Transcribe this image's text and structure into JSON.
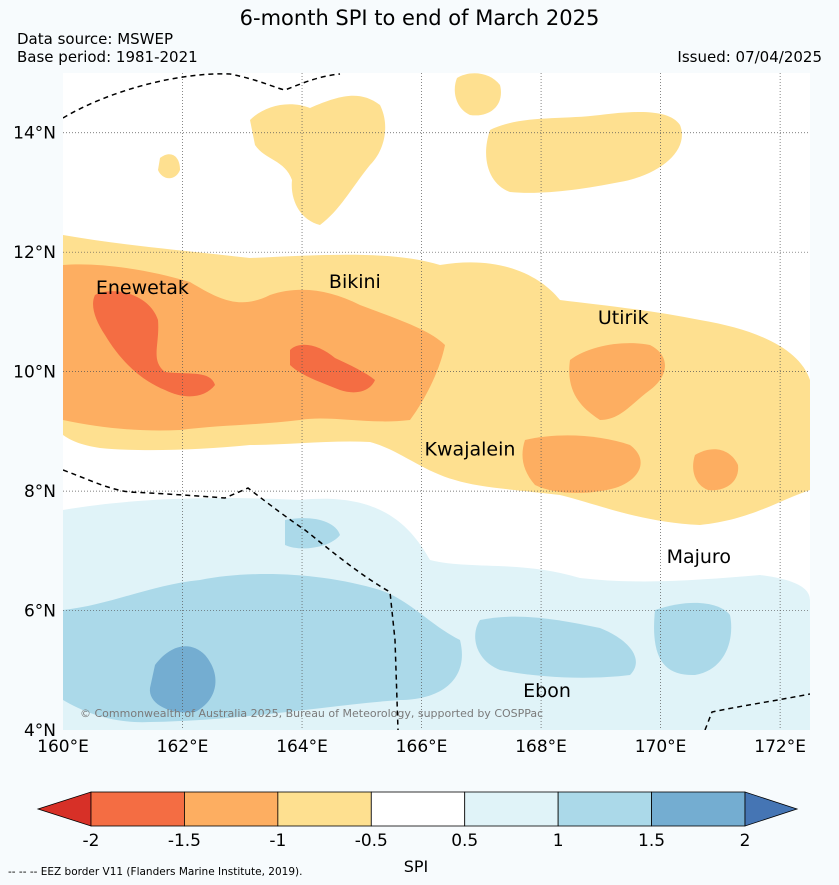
{
  "title": "6-month SPI to end of March 2025",
  "data_source": "Data source: MSWEP",
  "base_period": "Base period: 1981-2021",
  "issued": "Issued: 07/04/2025",
  "copyright": "© Commonwealth of Australia 2025, Bureau of Meteorology, supported by COSPPac",
  "credit": "--  --  -- EEZ border V11 (Flanders Marine Institute, 2019).",
  "map": {
    "lon_range": [
      160,
      172.5
    ],
    "lat_range": [
      4,
      15
    ],
    "lon_ticks": [
      {
        "value": 160,
        "label": "160°E"
      },
      {
        "value": 162,
        "label": "162°E"
      },
      {
        "value": 164,
        "label": "164°E"
      },
      {
        "value": 166,
        "label": "166°E"
      },
      {
        "value": 168,
        "label": "168°E"
      },
      {
        "value": 170,
        "label": "170°E"
      },
      {
        "value": 172,
        "label": "172°E"
      }
    ],
    "lat_ticks": [
      {
        "value": 4,
        "label": "4°N"
      },
      {
        "value": 6,
        "label": "6°N"
      },
      {
        "value": 8,
        "label": "8°N"
      },
      {
        "value": 10,
        "label": "10°N"
      },
      {
        "value": 12,
        "label": "12°N"
      },
      {
        "value": 14,
        "label": "14°N"
      }
    ],
    "places": [
      {
        "name": "Enewetak",
        "lon": 160.55,
        "lat": 11.3
      },
      {
        "name": "Bikini",
        "lon": 164.45,
        "lat": 11.4
      },
      {
        "name": "Utirik",
        "lon": 168.95,
        "lat": 10.8
      },
      {
        "name": "Kwajalein",
        "lon": 166.05,
        "lat": 8.6
      },
      {
        "name": "Majuro",
        "lon": 170.1,
        "lat": 6.8
      },
      {
        "name": "Ebon",
        "lon": 167.7,
        "lat": 4.55
      }
    ]
  },
  "colorbar": {
    "label": "SPI",
    "ticks": [
      "-2",
      "-1.5",
      "-1",
      "-0.5",
      "0.5",
      "1",
      "1.5",
      "2"
    ],
    "colors": {
      "below_-2": "#d73027",
      "-2_-1.5": "#f46d43",
      "-1.5_-1": "#fdae61",
      "-1_-0.5": "#fee090",
      "-0.5_0.5": "#ffffff",
      "0.5_1": "#e0f3f8",
      "1_1.5": "#abd9e9",
      "1.5_2": "#74add1",
      "above_2": "#4575b4"
    }
  }
}
